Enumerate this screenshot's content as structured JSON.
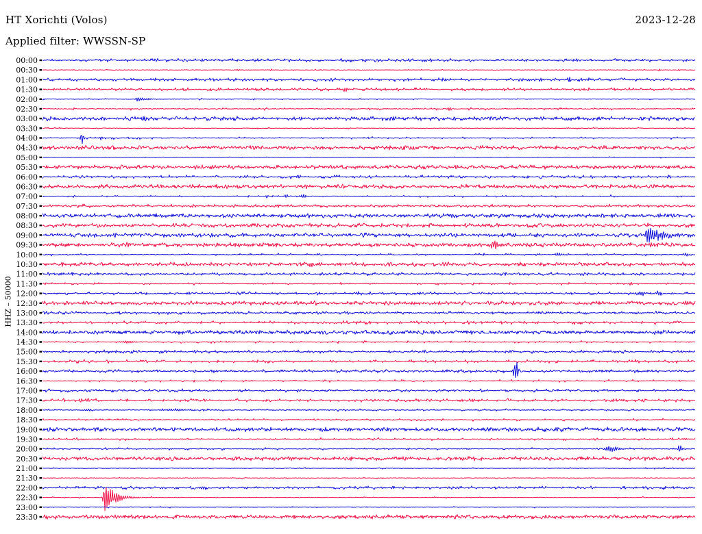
{
  "header": {
    "station": "HT Xorichti (Volos)",
    "date": "2023-12-28",
    "filter_label": "Applied filter: WWSSN-SP"
  },
  "axis": {
    "left_label": "HHZ – 50000"
  },
  "chart_data": {
    "type": "line",
    "subtype": "helicorder-daily-seismogram",
    "title": "HT Xorichti (Volos)",
    "date": "2023-12-28",
    "filter": "WWSSN-SP",
    "channel_and_scale": "HHZ – 50000",
    "minutes_per_row": 30,
    "rows_total": 48,
    "legend_position": "none",
    "grid": false,
    "palette": {
      "trace_blue": "#0d0dd8",
      "trace_red": "#ee0e44",
      "labels": "#000000",
      "background": "#ffffff"
    },
    "noise_presets": {
      "flat": {
        "jitter": 0.35,
        "spike_p": 0.04,
        "spike_a": 1.2
      },
      "low": {
        "jitter": 0.45,
        "spike_p": 0.12,
        "spike_a": 1.8
      },
      "med": {
        "jitter": 0.6,
        "spike_p": 0.3,
        "spike_a": 2.2
      },
      "high": {
        "jitter": 0.9,
        "spike_p": 0.55,
        "spike_a": 2.6
      },
      "thick": {
        "jitter": 1.5,
        "spike_p": 0.7,
        "spike_a": 2.0
      }
    },
    "rows": [
      {
        "time": "00:00",
        "color": "blue",
        "noise": "med",
        "events": []
      },
      {
        "time": "00:30",
        "color": "red",
        "noise": "flat",
        "events": [
          {
            "f": 0.3,
            "a": 1.8,
            "w": 3
          },
          {
            "f": 0.35,
            "a": 1.8,
            "w": 3
          },
          {
            "f": 0.945,
            "a": 1.8,
            "w": 3
          },
          {
            "f": 0.975,
            "a": 1.8,
            "w": 3
          }
        ]
      },
      {
        "time": "01:00",
        "color": "blue",
        "noise": "med",
        "events": [
          {
            "f": 0.765,
            "a": 3,
            "w": 4
          },
          {
            "f": 0.807,
            "a": 5,
            "w": 5
          }
        ]
      },
      {
        "time": "01:30",
        "color": "red",
        "noise": "med",
        "events": [
          {
            "f": 0.465,
            "a": 2.2,
            "w": 10
          }
        ]
      },
      {
        "time": "02:00",
        "color": "blue",
        "noise": "flat",
        "events": [
          {
            "f": 0.145,
            "a": 4,
            "w": 38,
            "t": "decay"
          }
        ]
      },
      {
        "time": "02:30",
        "color": "red",
        "noise": "low",
        "events": [
          {
            "f": 0.623,
            "a": 3,
            "w": 4
          }
        ]
      },
      {
        "time": "03:00",
        "color": "blue",
        "noise": "high",
        "events": []
      },
      {
        "time": "03:30",
        "color": "red",
        "noise": "flat",
        "events": []
      },
      {
        "time": "04:00",
        "color": "blue",
        "noise": "low",
        "events": [
          {
            "f": 0.061,
            "a": 10,
            "w": 4
          },
          {
            "f": 0.09,
            "a": 3,
            "w": 4
          }
        ]
      },
      {
        "time": "04:30",
        "color": "red",
        "noise": "high",
        "events": []
      },
      {
        "time": "05:00",
        "color": "blue",
        "noise": "flat",
        "events": []
      },
      {
        "time": "05:30",
        "red_note": "",
        "color": "red",
        "noise": "high",
        "events": [
          {
            "f": 0.964,
            "a": 3,
            "w": 10
          }
        ]
      },
      {
        "time": "06:00",
        "color": "blue",
        "noise": "med",
        "events": [
          {
            "f": 0.39,
            "a": 2.5,
            "w": 8
          }
        ]
      },
      {
        "time": "06:30",
        "color": "red",
        "noise": "high",
        "events": []
      },
      {
        "time": "07:00",
        "color": "blue",
        "noise": "low",
        "events": [
          {
            "f": 0.344,
            "a": 2,
            "w": 4
          },
          {
            "f": 0.374,
            "a": 3,
            "w": 6
          },
          {
            "f": 0.4,
            "a": 3.5,
            "w": 8
          }
        ]
      },
      {
        "time": "07:30",
        "color": "red",
        "noise": "med",
        "events": []
      },
      {
        "time": "08:00",
        "color": "blue",
        "noise": "thick",
        "events": []
      },
      {
        "time": "08:30",
        "color": "red",
        "noise": "high",
        "events": []
      },
      {
        "time": "09:00",
        "color": "blue",
        "noise": "high",
        "events": [
          {
            "f": 0.9265,
            "a": 17,
            "w": 55,
            "t": "decay"
          }
        ]
      },
      {
        "time": "09:30",
        "color": "red",
        "noise": "thick",
        "events": [
          {
            "f": 0.131,
            "a": 3.5,
            "w": 6
          },
          {
            "f": 0.692,
            "a": 7,
            "w": 12
          },
          {
            "f": 0.9327,
            "a": 8,
            "w": 4
          }
        ]
      },
      {
        "time": "10:00",
        "color": "blue",
        "noise": "low",
        "events": [
          {
            "f": 0.423,
            "a": 2,
            "w": 6
          },
          {
            "f": 0.791,
            "a": 2,
            "w": 14
          },
          {
            "f": 0.985,
            "a": 2,
            "w": 10
          }
        ]
      },
      {
        "time": "10:30",
        "color": "red",
        "noise": "high",
        "events": [
          {
            "f": 0.413,
            "a": 4,
            "w": 14
          }
        ]
      },
      {
        "time": "11:00",
        "color": "blue",
        "noise": "med",
        "events": []
      },
      {
        "time": "11:30",
        "color": "red",
        "noise": "low",
        "events": [
          {
            "f": 0.617,
            "a": 2,
            "w": 4
          },
          {
            "f": 0.901,
            "a": 3,
            "w": 4
          }
        ]
      },
      {
        "time": "12:00",
        "color": "blue",
        "noise": "med",
        "events": [
          {
            "f": 0.917,
            "a": 3,
            "w": 12
          },
          {
            "f": 0.945,
            "a": 3,
            "w": 8
          }
        ]
      },
      {
        "time": "12:30",
        "color": "red",
        "noise": "high",
        "events": [
          {
            "f": 0.987,
            "a": 5,
            "w": 8
          }
        ]
      },
      {
        "time": "13:00",
        "color": "blue",
        "noise": "med",
        "events": []
      },
      {
        "time": "13:30",
        "color": "red",
        "noise": "med",
        "events": [
          {
            "f": 0.812,
            "a": 2.5,
            "w": 8
          }
        ]
      },
      {
        "time": "14:00",
        "color": "blue",
        "noise": "thick",
        "events": []
      },
      {
        "time": "14:30",
        "color": "red",
        "noise": "low",
        "events": [
          {
            "f": 0.129,
            "a": 2.2,
            "w": 16
          }
        ]
      },
      {
        "time": "15:00",
        "color": "blue",
        "noise": "med",
        "events": []
      },
      {
        "time": "15:30",
        "color": "red",
        "noise": "med",
        "events": []
      },
      {
        "time": "16:00",
        "color": "blue",
        "noise": "med",
        "events": [
          {
            "f": 0.725,
            "a": 16,
            "w": 6
          }
        ]
      },
      {
        "time": "16:30",
        "color": "red",
        "noise": "low",
        "events": []
      },
      {
        "time": "17:00",
        "color": "blue",
        "noise": "med",
        "events": []
      },
      {
        "time": "17:30",
        "color": "red",
        "noise": "med",
        "events": []
      },
      {
        "time": "18:00",
        "color": "blue",
        "noise": "low",
        "events": [
          {
            "f": 0.069,
            "a": 2,
            "w": 10
          },
          {
            "f": 0.203,
            "a": 2,
            "w": 20
          }
        ]
      },
      {
        "time": "18:30",
        "color": "red",
        "noise": "low",
        "events": []
      },
      {
        "time": "19:00",
        "color": "blue",
        "noise": "thick",
        "events": []
      },
      {
        "time": "19:30",
        "color": "red",
        "noise": "low",
        "events": [
          {
            "f": 0.985,
            "a": 2,
            "w": 8
          }
        ]
      },
      {
        "time": "20:00",
        "color": "blue",
        "noise": "low",
        "events": [
          {
            "f": 0.873,
            "a": 4.5,
            "w": 18
          },
          {
            "f": 0.977,
            "a": 7,
            "w": 5
          }
        ]
      },
      {
        "time": "20:30",
        "color": "red",
        "noise": "thick",
        "events": []
      },
      {
        "time": "21:00",
        "color": "blue",
        "noise": "flat",
        "events": []
      },
      {
        "time": "21:30",
        "color": "red",
        "noise": "flat",
        "events": []
      },
      {
        "time": "22:00",
        "color": "blue",
        "noise": "med",
        "events": [
          {
            "f": 0.2468,
            "a": 3,
            "w": 8
          }
        ]
      },
      {
        "time": "22:30",
        "color": "red",
        "noise": "flat",
        "events": [
          {
            "f": 0.0956,
            "a": 24,
            "w": 45,
            "t": "decay"
          }
        ]
      },
      {
        "time": "23:00",
        "color": "blue",
        "noise": "flat",
        "events": []
      },
      {
        "time": "23:30",
        "color": "red",
        "noise": "high",
        "events": []
      }
    ]
  }
}
